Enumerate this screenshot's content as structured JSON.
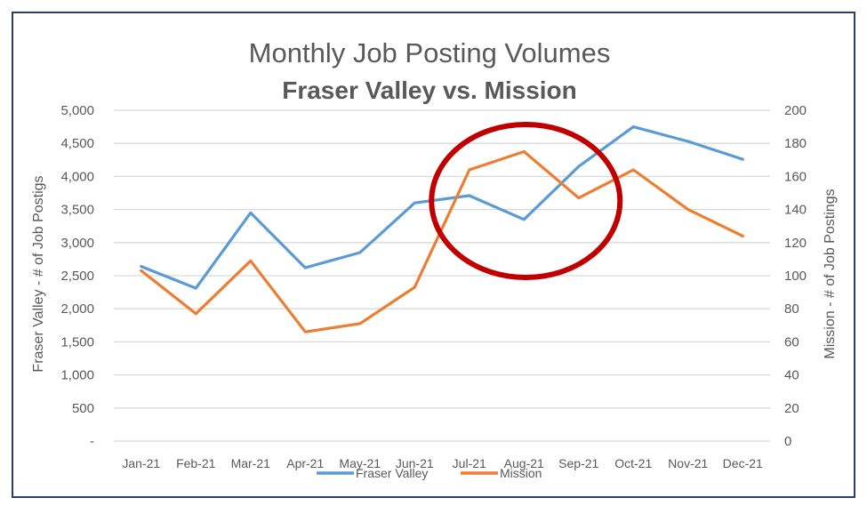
{
  "chart_data": {
    "type": "line",
    "title": "Monthly Job Posting Volumes",
    "subtitle": "Fraser Valley vs. Mission",
    "categories": [
      "Jan-21",
      "Feb-21",
      "Mar-21",
      "Apr-21",
      "May-21",
      "Jun-21",
      "Jul-21",
      "Aug-21",
      "Sep-21",
      "Oct-21",
      "Nov-21",
      "Dec-21"
    ],
    "y_left": {
      "label": "Fraser Valley - # of Job Postigs",
      "min": 0,
      "max": 5000,
      "tick_labels": [
        "-",
        "500",
        "1,000",
        "1,500",
        "2,000",
        "2,500",
        "3,000",
        "3,500",
        "4,000",
        "4,500",
        "5,000"
      ],
      "tick_values": [
        0,
        500,
        1000,
        1500,
        2000,
        2500,
        3000,
        3500,
        4000,
        4500,
        5000
      ]
    },
    "y_right": {
      "label": "Mission - # of Job Postings",
      "min": 0,
      "max": 200,
      "tick_labels": [
        "0",
        "20",
        "40",
        "60",
        "80",
        "100",
        "120",
        "140",
        "160",
        "180",
        "200"
      ],
      "tick_values": [
        0,
        20,
        40,
        60,
        80,
        100,
        120,
        140,
        160,
        180,
        200
      ]
    },
    "series": [
      {
        "name": "Fraser Valley",
        "axis": "left",
        "color": "#5b9bd5",
        "values": [
          2640,
          2310,
          3450,
          2620,
          2850,
          3600,
          3710,
          3350,
          4150,
          4750,
          4530,
          4260
        ]
      },
      {
        "name": "Mission",
        "axis": "right",
        "color": "#ed7d31",
        "values": [
          103,
          77,
          109,
          66,
          71,
          93,
          164,
          175,
          147,
          164,
          140,
          124
        ]
      }
    ],
    "grid": true,
    "legend_position": "bottom",
    "annotation": {
      "shape": "ellipse",
      "color": "#c00000",
      "from_category": "Jul-21",
      "to_category": "Sep-21"
    }
  }
}
